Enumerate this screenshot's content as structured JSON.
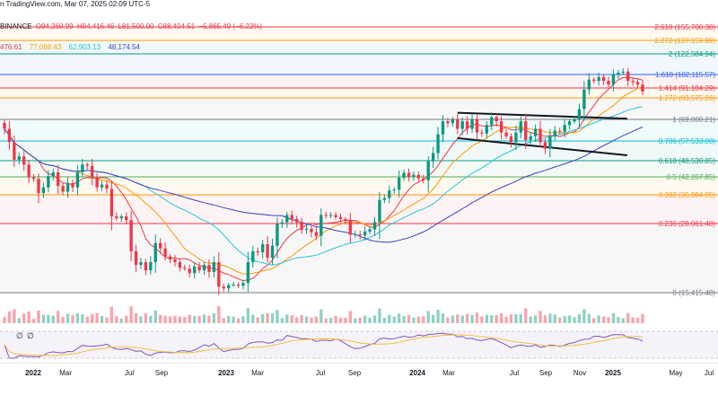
{
  "header": {
    "credit": "n TradingView.com, Mar 07, 2025 02:09 UTC-5",
    "ohlc": {
      "exchange": " BINANCE",
      "open": "O94,269.99",
      "high": "H94,416.46",
      "low": "L81,500.00",
      "close": "C88,404.51",
      "change": "−5,865.49 (−6.22%)"
    },
    "ma_values": [
      "476.61",
      "77,068.43",
      "62,903.13",
      "48,174.54"
    ]
  },
  "chart_data": {
    "type": "candlestick",
    "fib_levels": [
      {
        "ratio": "2.618",
        "price": 155700.38,
        "label": "2.618 (155,700.38)",
        "color": "#f23645"
      },
      {
        "ratio": "2.272",
        "price": 137159.99,
        "label": "2.272 (137,159.99)",
        "color": "#ff9800"
      },
      {
        "ratio": "2",
        "price": 122584.94,
        "label": "2 (122,584.94)",
        "color": "#089981"
      },
      {
        "ratio": "1.618",
        "price": 102115.57,
        "label": "1.618 (102,115.57)",
        "color": "#2962ff"
      },
      {
        "ratio": "1.414",
        "price": 91184.29,
        "label": "1.414 (91,184.29)",
        "color": "#f23645"
      },
      {
        "ratio": "1.272",
        "price": 83575.26,
        "label": "1.272 (83,575.26)",
        "color": "#ff9800"
      },
      {
        "ratio": "1",
        "price": 69000.21,
        "label": "1 (69,000.21)",
        "color": "#787b86"
      },
      {
        "ratio": "0.786",
        "price": 57533.08,
        "label": "0.786 (57,533.08)",
        "color": "#00bcd4"
      },
      {
        "ratio": "0.618",
        "price": 48530.85,
        "label": "0.618 (48,530.85)",
        "color": "#089981"
      },
      {
        "ratio": "0.5",
        "price": 42207.85,
        "label": "0.5 (42,207.85)",
        "color": "#4caf50"
      },
      {
        "ratio": "0.382",
        "price": 35884.85,
        "label": "0.382 (35,884.85)",
        "color": "#ff9800"
      },
      {
        "ratio": "0.236",
        "price": 28061.48,
        "label": "0.236 (28,061.48)",
        "color": "#f23645"
      },
      {
        "ratio": "0",
        "price": 15415.48,
        "label": "0 (15,415.48)",
        "color": "#787b86"
      }
    ],
    "time_axis": {
      "labels": [
        "2022",
        "Mar",
        "Jul",
        "Sep",
        "2023",
        "Mar",
        "Jul",
        "Sep",
        "2024",
        "Mar",
        "Jul",
        "Sep",
        "Nov",
        "2025",
        "May",
        "Jul"
      ]
    },
    "weekly_closes": [
      64000,
      57000,
      49000,
      50500,
      47000,
      42000,
      41500,
      36500,
      38500,
      42500,
      44000,
      39000,
      37000,
      40000,
      38500,
      44000,
      47000,
      46500,
      42000,
      38500,
      39500,
      38000,
      30000,
      29500,
      30000,
      29000,
      23000,
      20500,
      21000,
      19500,
      21000,
      24500,
      23500,
      22000,
      21500,
      21000,
      20000,
      19800,
      19000,
      20200,
      19500,
      20500,
      19200,
      21000,
      16500,
      16200,
      16800,
      16900,
      16700,
      17200,
      21000,
      23000,
      22800,
      24300,
      21800,
      24000,
      28000,
      28400,
      30400,
      29300,
      28400,
      26900,
      27100,
      26500,
      25800,
      30400,
      30300,
      30400,
      29800,
      29300,
      29100,
      26000,
      26100,
      25900,
      26600,
      27000,
      28500,
      34500,
      35000,
      37400,
      37700,
      41900,
      43800,
      42200,
      43000,
      41700,
      41000,
      48300,
      52000,
      61000,
      68000,
      67000,
      69000,
      64000,
      68000,
      64000,
      69000,
      62000,
      61500,
      66000,
      70500,
      68000,
      62000,
      60000,
      57000,
      62000,
      68000,
      58000,
      60000,
      64000,
      57000,
      54000,
      60000,
      63000,
      62500,
      66000,
      68000,
      69000,
      76000,
      90000,
      98000,
      97000,
      100000,
      97000,
      94000,
      102000,
      104000,
      105000,
      97000,
      96000,
      94000,
      88400
    ],
    "moving_averages": [
      {
        "name": "476.61",
        "color": "#f23645",
        "window": 8
      },
      {
        "name": "77,068.43",
        "color": "#ff9800",
        "window": 16
      },
      {
        "name": "62,903.13",
        "color": "#26c6da",
        "window": 30
      },
      {
        "name": "48,174.54",
        "color": "#3f3fbf",
        "window": 58
      }
    ],
    "trendlines": [
      {
        "from": [
          "2024-03",
          73500
        ],
        "to": [
          "2024-11",
          69500
        ]
      },
      {
        "from": [
          "2024-03",
          59000
        ],
        "to": [
          "2024-11",
          51000
        ]
      }
    ]
  },
  "oscillator": {
    "marks": [
      "∅",
      "∅"
    ]
  }
}
